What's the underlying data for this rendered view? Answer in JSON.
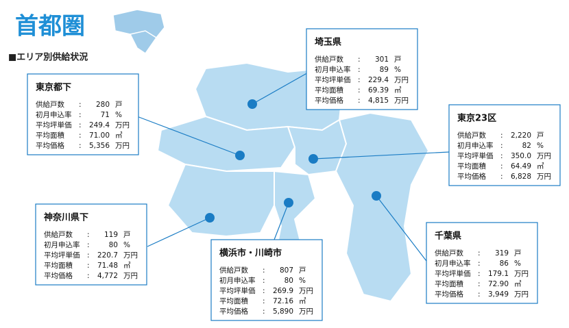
{
  "header": {
    "title": "首都圏",
    "subtitle": "■エリア別供給状況"
  },
  "regions": [
    {
      "name": "埼玉県",
      "rows": [
        {
          "label": "供給戸数",
          "value": "301",
          "unit": "戸"
        },
        {
          "label": "初月申込率",
          "value": "89",
          "unit": "%"
        },
        {
          "label": "平均坪単価",
          "value": "229.4",
          "unit": "万円"
        },
        {
          "label": "平均面積",
          "value": "69.39",
          "unit": "㎡"
        },
        {
          "label": "平均価格",
          "value": "4,815",
          "unit": "万円"
        }
      ]
    },
    {
      "name": "東京都下",
      "rows": [
        {
          "label": "供給戸数",
          "value": "280",
          "unit": "戸"
        },
        {
          "label": "初月申込率",
          "value": "71",
          "unit": "%"
        },
        {
          "label": "平均坪単価",
          "value": "249.4",
          "unit": "万円"
        },
        {
          "label": "平均面積",
          "value": "71.00",
          "unit": "㎡"
        },
        {
          "label": "平均価格",
          "value": "5,356",
          "unit": "万円"
        }
      ]
    },
    {
      "name": "東京23区",
      "rows": [
        {
          "label": "供給戸数",
          "value": "2,220",
          "unit": "戸"
        },
        {
          "label": "初月申込率",
          "value": "82",
          "unit": "%"
        },
        {
          "label": "平均坪単価",
          "value": "350.0",
          "unit": "万円"
        },
        {
          "label": "平均面積",
          "value": "64.49",
          "unit": "㎡"
        },
        {
          "label": "平均価格",
          "value": "6,828",
          "unit": "万円"
        }
      ]
    },
    {
      "name": "神奈川県下",
      "rows": [
        {
          "label": "供給戸数",
          "value": "119",
          "unit": "戸"
        },
        {
          "label": "初月申込率",
          "value": "80",
          "unit": "%"
        },
        {
          "label": "平均坪単価",
          "value": "220.7",
          "unit": "万円"
        },
        {
          "label": "平均面積",
          "value": "71.48",
          "unit": "㎡"
        },
        {
          "label": "平均価格",
          "value": "4,772",
          "unit": "万円"
        }
      ]
    },
    {
      "name": "横浜市・川崎市",
      "rows": [
        {
          "label": "供給戸数",
          "value": "807",
          "unit": "戸"
        },
        {
          "label": "初月申込率",
          "value": "80",
          "unit": "%"
        },
        {
          "label": "平均坪単価",
          "value": "269.9",
          "unit": "万円"
        },
        {
          "label": "平均面積",
          "value": "72.16",
          "unit": "㎡"
        },
        {
          "label": "平均価格",
          "value": "5,890",
          "unit": "万円"
        }
      ]
    },
    {
      "name": "千葉県",
      "rows": [
        {
          "label": "供給戸数",
          "value": "319",
          "unit": "戸"
        },
        {
          "label": "初月申込率",
          "value": "86",
          "unit": "%"
        },
        {
          "label": "平均坪単価",
          "value": "179.1",
          "unit": "万円"
        },
        {
          "label": "平均面積",
          "value": "72.90",
          "unit": "㎡"
        },
        {
          "label": "平均価格",
          "value": "3,949",
          "unit": "万円"
        }
      ]
    }
  ]
}
